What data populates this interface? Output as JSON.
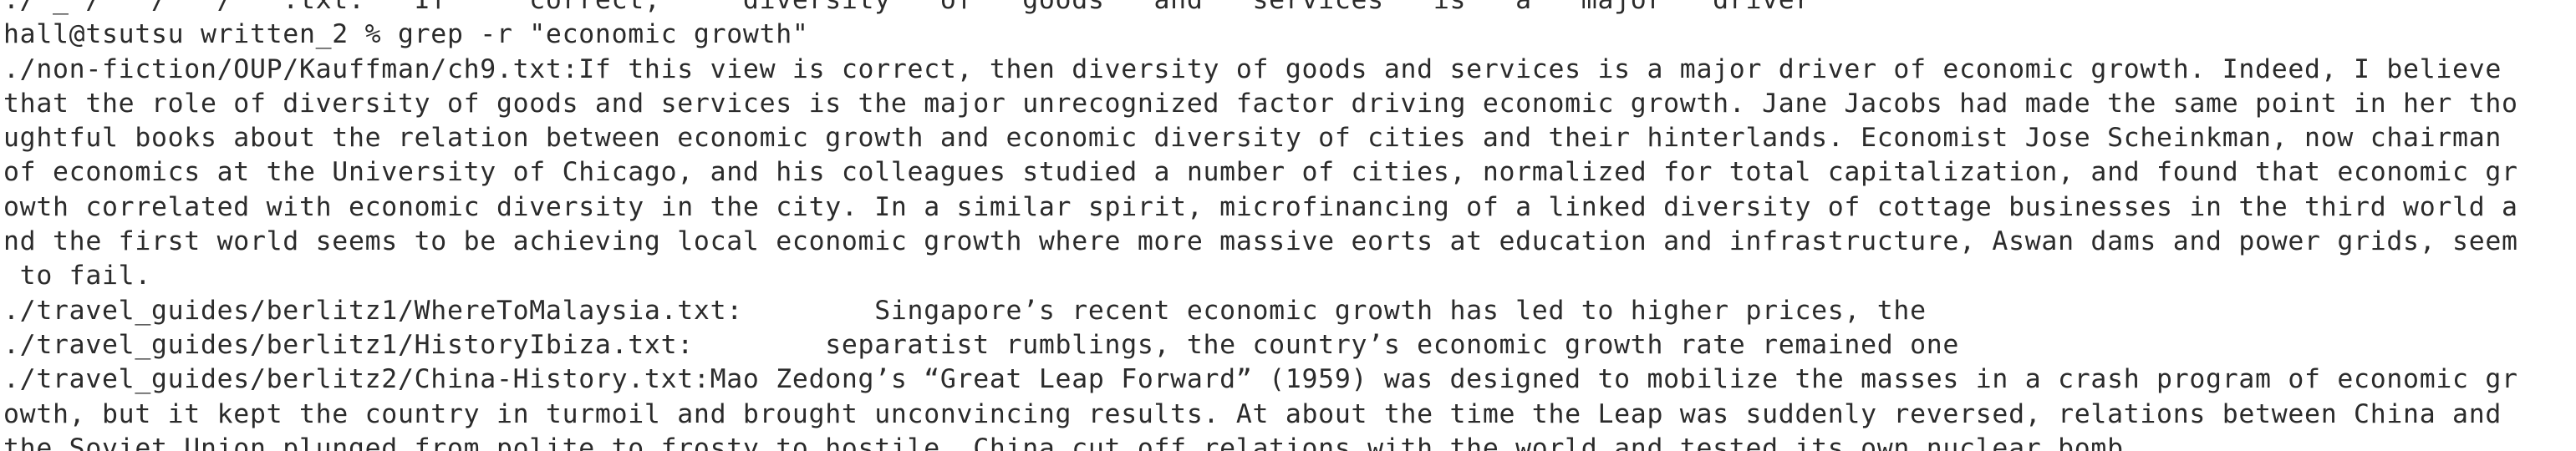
{
  "terminal": {
    "partial_top_line": "./ _ /   /   /   .txt:   If     correct,     diversity   of   goods   and   services   is   a   major   driver",
    "lines": [
      "hall@tsutsu written_2 % grep -r \"economic growth\"",
      "./non-fiction/OUP/Kauffman/ch9.txt:If this view is correct, then diversity of goods and services is a major driver of economic growth. Indeed, I believe",
      "that the role of diversity of goods and services is the major unrecognized factor driving economic growth. Jane Jacobs had made the same point in her tho",
      "ughtful books about the relation between economic growth and economic diversity of cities and their hinterlands. Economist Jose Scheinkman, now chairman",
      "of economics at the University of Chicago, and his colleagues studied a number of cities, normalized for total capitalization, and found that economic gr",
      "owth correlated with economic diversity in the city. In a similar spirit, microfinancing of a linked diversity of cottage businesses in the third world a",
      "nd the first world seems to be achieving local economic growth where more massive eorts at education and infrastructure, Aswan dams and power grids, seem",
      " to fail.",
      "./travel_guides/berlitz1/WhereToMalaysia.txt:        Singapore’s recent economic growth has led to higher prices, the",
      "./travel_guides/berlitz1/HistoryIbiza.txt:        separatist rumblings, the country’s economic growth rate remained one",
      "./travel_guides/berlitz2/China-History.txt:Mao Zedong’s “Great Leap Forward” (1959) was designed to mobilize the masses in a crash program of economic gr",
      "owth, but it kept the country in turmoil and brought unconvincing results. At about the time the Leap was suddenly reversed, relations between China and",
      "the Soviet Union plunged from polite to frosty to hostile. China cut off relations with the world and tested its own nuclear bomb."
    ]
  }
}
